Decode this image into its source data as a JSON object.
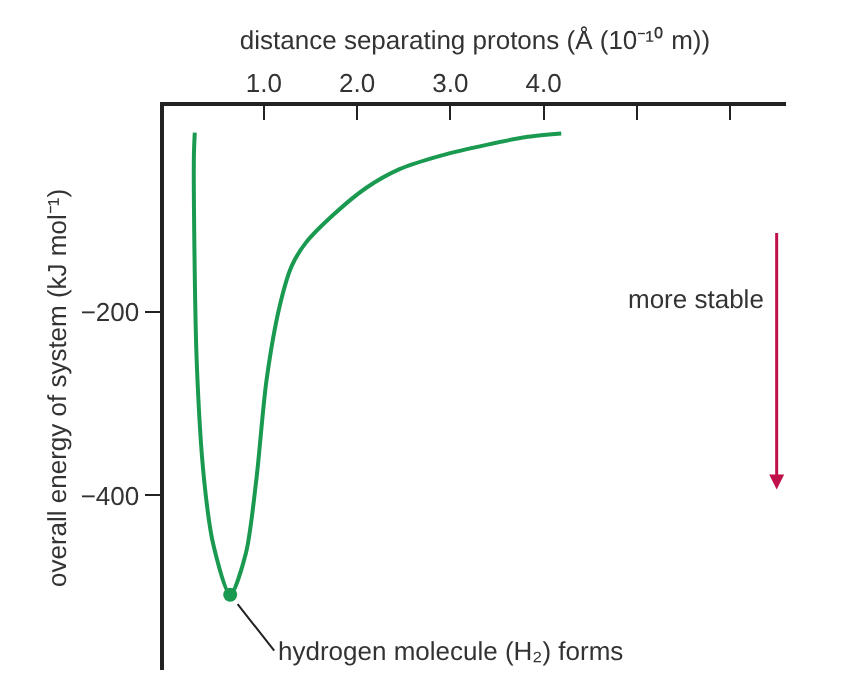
{
  "chart_data": {
    "type": "line",
    "xlabel": "distance separating protons (Å (10⁻¹⁰ m))",
    "ylabel": "overall energy of system (kJ mol⁻¹)",
    "xlim": [
      -0.07,
      6.6
    ],
    "ylim": [
      -590,
      24
    ],
    "xticks": [
      {
        "value": 1,
        "label": "1.0"
      },
      {
        "value": 2,
        "label": "2.0"
      },
      {
        "value": 3,
        "label": "3.0"
      },
      {
        "value": 4,
        "label": "4.0"
      },
      {
        "value": 5,
        "label": null
      },
      {
        "value": 6,
        "label": null
      }
    ],
    "yticks": [
      {
        "value": -200,
        "label": "−200"
      },
      {
        "value": -400,
        "label": "−400"
      }
    ],
    "series": [
      {
        "color": "#1a9a50",
        "x": [
          0.26,
          0.25,
          0.28,
          0.36,
          0.46,
          0.64,
          0.81,
          0.92,
          1.03,
          1.17,
          1.3,
          1.45,
          1.74,
          2.1,
          2.45,
          2.9,
          3.4,
          3.8,
          4.19
        ],
        "values": [
          -5,
          -35,
          -252,
          -383,
          -454,
          -508,
          -462,
          -383,
          -274,
          -194,
          -150,
          -125,
          -95,
          -65,
          -45,
          -30,
          -18,
          -10,
          -6
        ]
      },
      {
        "type": "scatter",
        "marker": "circle",
        "color": "#1a9a50",
        "x": [
          0.64
        ],
        "values": [
          -508
        ]
      }
    ],
    "annotations": [
      {
        "text": "hydrogen molecule (H₂) forms",
        "x": 0.64,
        "y": -508
      },
      "more stable"
    ]
  }
}
